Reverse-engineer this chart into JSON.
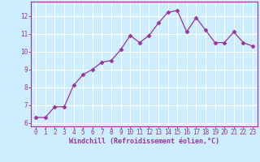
{
  "x": [
    0,
    1,
    2,
    3,
    4,
    5,
    6,
    7,
    8,
    9,
    10,
    11,
    12,
    13,
    14,
    15,
    16,
    17,
    18,
    19,
    20,
    21,
    22,
    23
  ],
  "y": [
    6.3,
    6.3,
    6.9,
    6.9,
    8.1,
    8.7,
    9.0,
    9.4,
    9.5,
    10.1,
    10.9,
    10.5,
    10.9,
    11.6,
    12.2,
    12.3,
    11.1,
    11.9,
    11.2,
    10.5,
    10.5,
    11.1,
    10.5,
    10.3
  ],
  "line_color": "#993399",
  "marker": "D",
  "marker_size": 2.5,
  "bg_color": "#cceeff",
  "grid_color": "#ffffff",
  "xlabel": "Windchill (Refroidissement éolien,°C)",
  "xlabel_color": "#993399",
  "tick_color": "#993399",
  "ylim": [
    5.8,
    12.8
  ],
  "xlim": [
    -0.5,
    23.5
  ],
  "yticks": [
    6,
    7,
    8,
    9,
    10,
    11,
    12
  ],
  "xticks": [
    0,
    1,
    2,
    3,
    4,
    5,
    6,
    7,
    8,
    9,
    10,
    11,
    12,
    13,
    14,
    15,
    16,
    17,
    18,
    19,
    20,
    21,
    22,
    23
  ],
  "spine_color": "#993399",
  "spine_bottom_color": "#993399"
}
